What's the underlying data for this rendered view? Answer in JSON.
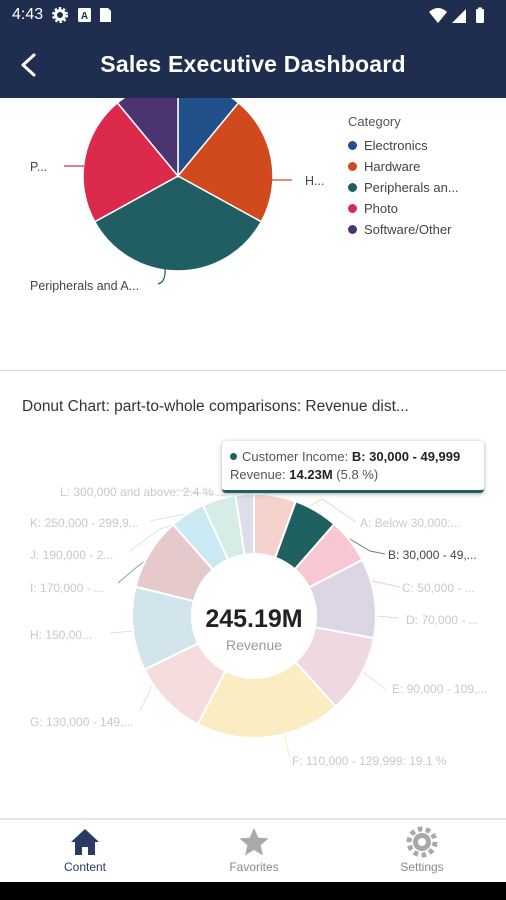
{
  "status_bar": {
    "time": "4:43"
  },
  "app_bar": {
    "title": "Sales Executive Dashboard"
  },
  "pie_chart": {
    "legend_title": "Category",
    "legend_items": [
      "Electronics",
      "Hardware",
      "Peripherals an...",
      "Photo",
      "Software/Other"
    ],
    "labels": {
      "left": "P...",
      "right": "H...",
      "bottom": "Peripherals and A..."
    },
    "colors": [
      "#22508a",
      "#d04a1d",
      "#215e63",
      "#db2a4b",
      "#4b3470"
    ]
  },
  "donut_chart": {
    "title": "Donut Chart: part-to-whole comparisons: Revenue dist...",
    "center_value": "245.19M",
    "center_label": "Revenue",
    "labels": [
      "L: 300,000 and above: 2.4 %",
      "K: 250,000 - 299,9...",
      "J: 190,000 - 2...",
      "I: 170,000 - ...",
      "H: 150,00...",
      "G: 130,000 - 149,...",
      "F: 110,000 - 129,999: 19.1 %",
      "E: 90,000 - 109,...",
      "D: 70,000 - ...",
      "C: 50,000 - ...",
      "B: 30,000 - 49,...",
      "A: Below 30,000:..."
    ],
    "tooltip": {
      "series_label": "Customer Income:",
      "series_value": "B: 30,000 - 49,999",
      "measure_label": "Revenue:",
      "measure_value": "14.23M",
      "measure_pct": "(5.8 %)"
    }
  },
  "chart_data": [
    {
      "type": "pie",
      "title": "",
      "legend_title": "Category",
      "categories": [
        "Electronics",
        "Hardware",
        "Peripherals and Accessories",
        "Photo",
        "Software/Other"
      ],
      "values": [
        11,
        22,
        34,
        22,
        11
      ],
      "legend": "right"
    },
    {
      "type": "pie",
      "title": "Donut Chart: part-to-whole comparisons: Revenue dist...",
      "series_label": "Customer Income",
      "measure": "Revenue",
      "total": "245.19M",
      "categories": [
        "A: Below 30,000",
        "B: 30,000 - 49,999",
        "C: 50,000 - ...",
        "D: 70,000 - ...",
        "E: 90,000 - 109,...",
        "F: 110,000 - 129,999",
        "G: 130,000 - 149,...",
        "H: 150,00...",
        "I: 170,000 - ...",
        "J: 190,000 - 2...",
        "K: 250,000 - 299,9...",
        "L: 300,000 and above"
      ],
      "values": [
        5.5,
        5.8,
        5.9,
        10.4,
        10.3,
        19.1,
        10.0,
        11.0,
        9.5,
        4.6,
        4.4,
        2.4
      ],
      "highlighted": "B: 30,000 - 49,999",
      "colors": [
        "#f5d3cc",
        "#1f6161",
        "#f7c8d2",
        "#dcd6e4",
        "#f0d8e2",
        "#fcecc3",
        "#f6dcdc",
        "#d3e5ec",
        "#e6c9cb",
        "#cae9f2",
        "#d6ece6",
        "#dcdfe9"
      ]
    }
  ],
  "nav": {
    "items": [
      {
        "label": "Content"
      },
      {
        "label": "Favorites"
      },
      {
        "label": "Settings"
      }
    ]
  }
}
